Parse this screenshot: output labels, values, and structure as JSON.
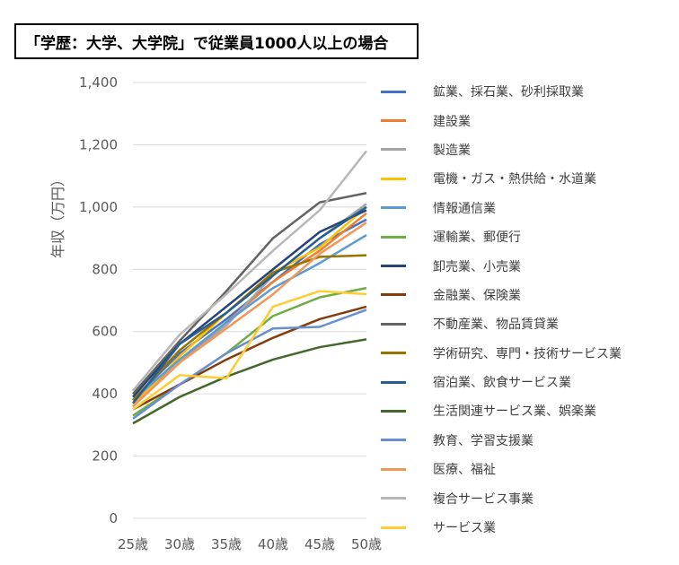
{
  "title": "「学歴：大学、大学院」で従業員1000人以上の場合",
  "chart_data": {
    "type": "line",
    "title": "「学歴：大学、大学院」で従業員1000人以上の場合",
    "xlabel": "",
    "ylabel": "年収（万円）",
    "categories": [
      "25歳",
      "30歳",
      "35歳",
      "40歳",
      "45歳",
      "50歳"
    ],
    "ylim": [
      0,
      1400
    ],
    "yticks": [
      "0",
      "200",
      "400",
      "600",
      "800",
      "1,000",
      "1,200",
      "1,400"
    ],
    "grid": true,
    "legend": "right",
    "series": [
      {
        "name": "鉱業、採石業、砂利採取業",
        "color": "#4472C4",
        "values": [
          380,
          530,
          640,
          760,
          880,
          960
        ]
      },
      {
        "name": "建設業",
        "color": "#ED7D31",
        "values": [
          370,
          500,
          630,
          760,
          860,
          980
        ]
      },
      {
        "name": "製造業",
        "color": "#A5A5A5",
        "values": [
          360,
          500,
          620,
          780,
          900,
          1010
        ]
      },
      {
        "name": "電機・ガス・熱供給・水道業",
        "color": "#FFC000",
        "values": [
          360,
          520,
          660,
          790,
          870,
          1000
        ]
      },
      {
        "name": "情報通信業",
        "color": "#5B9BD5",
        "values": [
          380,
          510,
          630,
          740,
          820,
          910
        ]
      },
      {
        "name": "運輸業、郵便行",
        "color": "#70AD47",
        "values": [
          330,
          430,
          530,
          650,
          710,
          740
        ]
      },
      {
        "name": "卸売業、小売業",
        "color": "#264478",
        "values": [
          390,
          560,
          680,
          800,
          920,
          990
        ]
      },
      {
        "name": "金融業、保険業",
        "color": "#843C0C",
        "values": [
          350,
          430,
          510,
          580,
          640,
          680
        ]
      },
      {
        "name": "不動産業、物品賃貸業",
        "color": "#636363",
        "values": [
          400,
          570,
          730,
          900,
          1015,
          1045
        ]
      },
      {
        "name": "学術研究、専門・技術サービス業",
        "color": "#997300",
        "values": [
          380,
          540,
          660,
          790,
          840,
          845
        ]
      },
      {
        "name": "宿泊業、飲食サービス業",
        "color": "#255E91",
        "values": [
          370,
          560,
          660,
          780,
          900,
          1000
        ]
      },
      {
        "name": "生活関連サービス業、娯楽業",
        "color": "#43682B",
        "values": [
          305,
          390,
          455,
          510,
          550,
          575
        ]
      },
      {
        "name": "教育、学習支援業",
        "color": "#698ED0",
        "values": [
          320,
          430,
          530,
          610,
          615,
          670
        ]
      },
      {
        "name": "医療、福祉",
        "color": "#F1975A",
        "values": [
          360,
          500,
          610,
          720,
          850,
          950
        ]
      },
      {
        "name": "複合サービス事業",
        "color": "#B7B7B7",
        "values": [
          410,
          590,
          720,
          860,
          990,
          1180
        ]
      },
      {
        "name": "サービス業",
        "color": "#FFCD33",
        "values": [
          350,
          460,
          450,
          680,
          730,
          720
        ]
      }
    ]
  }
}
